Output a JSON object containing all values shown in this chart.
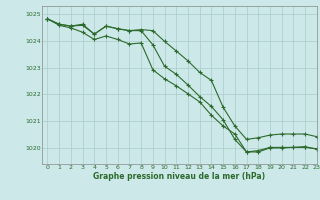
{
  "title": "Graphe pression niveau de la mer (hPa)",
  "bg_color": "#cce8e8",
  "grid_color": "#aacccc",
  "line_color": "#2d6a2d",
  "xlim": [
    -0.5,
    23
  ],
  "ylim": [
    1019.4,
    1025.3
  ],
  "yticks": [
    1020,
    1021,
    1022,
    1023,
    1024,
    1025
  ],
  "xticks": [
    0,
    1,
    2,
    3,
    4,
    5,
    6,
    7,
    8,
    9,
    10,
    11,
    12,
    13,
    14,
    15,
    16,
    17,
    18,
    19,
    20,
    21,
    22,
    23
  ],
  "line1": [
    1024.82,
    1024.62,
    1024.55,
    1024.62,
    1024.25,
    1024.55,
    1024.45,
    1024.38,
    1024.38,
    1023.85,
    1023.05,
    1022.75,
    1022.35,
    1021.92,
    1021.55,
    1021.05,
    1020.32,
    1019.85,
    1019.85,
    1020.0,
    1020.0,
    1020.02,
    1020.05,
    1019.95
  ],
  "line2": [
    1024.82,
    1024.62,
    1024.55,
    1024.58,
    1024.25,
    1024.55,
    1024.45,
    1024.38,
    1024.42,
    1024.38,
    1023.98,
    1023.62,
    1023.25,
    1022.82,
    1022.52,
    1021.52,
    1020.82,
    1020.32,
    1020.38,
    1020.48,
    1020.52,
    1020.52,
    1020.52,
    1020.42
  ],
  "line3": [
    1024.82,
    1024.58,
    1024.48,
    1024.32,
    1024.05,
    1024.18,
    1024.05,
    1023.88,
    1023.92,
    1022.92,
    1022.58,
    1022.32,
    1022.02,
    1021.72,
    1021.22,
    1020.82,
    1020.52,
    1019.85,
    1019.9,
    1020.02,
    1020.02,
    1020.02,
    1020.02,
    1019.97
  ]
}
